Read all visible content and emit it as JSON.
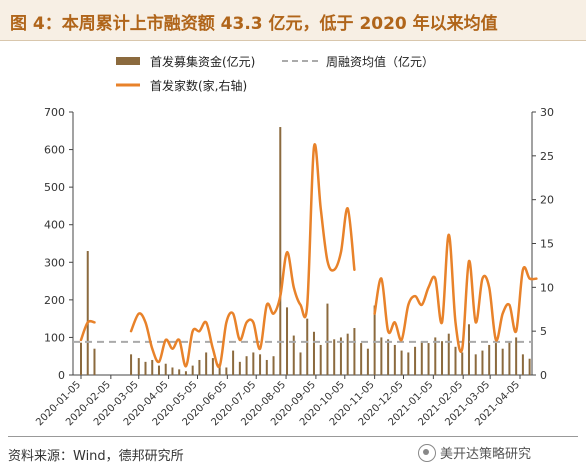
{
  "title": "图 4：本周累计上市融资额 43.3 亿元，低于 2020 年以来均值",
  "source": "资料来源：Wind，德邦研究所",
  "watermark": "美开达策略研究",
  "colors": {
    "bar": "#8b6a3e",
    "line": "#e8822a",
    "avg": "#aaaaaa",
    "title": "#b0651a"
  },
  "chart_data": {
    "type": "bar+line",
    "legend": {
      "bar": "首发募集资金(亿元)",
      "avg": "周融资均值（亿元）",
      "line": "首发家数(家,右轴)",
      "position": "top"
    },
    "x_ticks": [
      "2020-01-05",
      "2020-02-05",
      "2020-03-05",
      "2020-04-05",
      "2020-05-05",
      "2020-06-05",
      "2020-07-05",
      "2020-08-05",
      "2020-09-05",
      "2020-10-05",
      "2020-11-05",
      "2020-12-05",
      "2021-01-05",
      "2021-02-05",
      "2021-03-05",
      "2021-04-05"
    ],
    "y_left": {
      "min": 0,
      "max": 700,
      "ticks": [
        0,
        100,
        200,
        300,
        400,
        500,
        600,
        700
      ]
    },
    "y_right": {
      "min": 0,
      "max": 30,
      "ticks": [
        0,
        5,
        10,
        15,
        20,
        25,
        30
      ]
    },
    "avg_value": 88,
    "bars": [
      {
        "x": "2020-01-05",
        "value": 86
      },
      {
        "x": "2020-01-12",
        "value": 330
      },
      {
        "x": "2020-01-19",
        "value": 70
      },
      {
        "x": "2020-02-26",
        "value": 55
      },
      {
        "x": "2020-03-05",
        "value": 45
      },
      {
        "x": "2020-03-12",
        "value": 35
      },
      {
        "x": "2020-03-19",
        "value": 40
      },
      {
        "x": "2020-03-26",
        "value": 25
      },
      {
        "x": "2020-04-02",
        "value": 30
      },
      {
        "x": "2020-04-09",
        "value": 20
      },
      {
        "x": "2020-04-16",
        "value": 15
      },
      {
        "x": "2020-04-23",
        "value": 10
      },
      {
        "x": "2020-04-30",
        "value": 25
      },
      {
        "x": "2020-05-07",
        "value": 40
      },
      {
        "x": "2020-05-14",
        "value": 60
      },
      {
        "x": "2020-05-21",
        "value": 45
      },
      {
        "x": "2020-05-28",
        "value": 30
      },
      {
        "x": "2020-06-04",
        "value": 20
      },
      {
        "x": "2020-06-11",
        "value": 65
      },
      {
        "x": "2020-06-18",
        "value": 35
      },
      {
        "x": "2020-06-25",
        "value": 50
      },
      {
        "x": "2020-07-02",
        "value": 60
      },
      {
        "x": "2020-07-09",
        "value": 55
      },
      {
        "x": "2020-07-16",
        "value": 40
      },
      {
        "x": "2020-07-23",
        "value": 50
      },
      {
        "x": "2020-07-30",
        "value": 660
      },
      {
        "x": "2020-08-06",
        "value": 180
      },
      {
        "x": "2020-08-13",
        "value": 105
      },
      {
        "x": "2020-08-20",
        "value": 60
      },
      {
        "x": "2020-08-27",
        "value": 150
      },
      {
        "x": "2020-09-03",
        "value": 115
      },
      {
        "x": "2020-09-10",
        "value": 80
      },
      {
        "x": "2020-09-17",
        "value": 190
      },
      {
        "x": "2020-09-24",
        "value": 95
      },
      {
        "x": "2020-10-01",
        "value": 100
      },
      {
        "x": "2020-10-08",
        "value": 110
      },
      {
        "x": "2020-10-15",
        "value": 125
      },
      {
        "x": "2020-10-22",
        "value": 85
      },
      {
        "x": "2020-10-29",
        "value": 70
      },
      {
        "x": "2020-11-05",
        "value": 185
      },
      {
        "x": "2020-11-12",
        "value": 100
      },
      {
        "x": "2020-11-19",
        "value": 95
      },
      {
        "x": "2020-11-26",
        "value": 80
      },
      {
        "x": "2020-12-03",
        "value": 65
      },
      {
        "x": "2020-12-10",
        "value": 60
      },
      {
        "x": "2020-12-17",
        "value": 75
      },
      {
        "x": "2020-12-24",
        "value": 90
      },
      {
        "x": "2020-12-31",
        "value": 85
      },
      {
        "x": "2021-01-07",
        "value": 100
      },
      {
        "x": "2021-01-14",
        "value": 90
      },
      {
        "x": "2021-01-21",
        "value": 110
      },
      {
        "x": "2021-01-28",
        "value": 75
      },
      {
        "x": "2021-02-04",
        "value": 60
      },
      {
        "x": "2021-02-11",
        "value": 135
      },
      {
        "x": "2021-02-18",
        "value": 55
      },
      {
        "x": "2021-02-25",
        "value": 65
      },
      {
        "x": "2021-03-04",
        "value": 80
      },
      {
        "x": "2021-03-11",
        "value": 85
      },
      {
        "x": "2021-03-18",
        "value": 70
      },
      {
        "x": "2021-03-25",
        "value": 90
      },
      {
        "x": "2021-04-01",
        "value": 100
      },
      {
        "x": "2021-04-08",
        "value": 55
      },
      {
        "x": "2021-04-15",
        "value": 43.3
      }
    ],
    "line_segments": [
      [
        {
          "x": "2020-01-05",
          "value": 4
        },
        {
          "x": "2020-01-12",
          "value": 6
        },
        {
          "x": "2020-01-19",
          "value": 6
        }
      ],
      [
        {
          "x": "2020-02-26",
          "value": 5
        },
        {
          "x": "2020-03-05",
          "value": 7
        },
        {
          "x": "2020-03-12",
          "value": 6
        },
        {
          "x": "2020-03-19",
          "value": 3
        },
        {
          "x": "2020-03-26",
          "value": 1.5
        },
        {
          "x": "2020-04-02",
          "value": 4
        },
        {
          "x": "2020-04-09",
          "value": 3
        },
        {
          "x": "2020-04-16",
          "value": 4
        },
        {
          "x": "2020-04-23",
          "value": 1
        },
        {
          "x": "2020-04-30",
          "value": 5
        },
        {
          "x": "2020-05-07",
          "value": 5
        },
        {
          "x": "2020-05-14",
          "value": 6
        },
        {
          "x": "2020-05-21",
          "value": 3
        },
        {
          "x": "2020-05-28",
          "value": 1
        },
        {
          "x": "2020-06-04",
          "value": 6
        },
        {
          "x": "2020-06-11",
          "value": 7
        },
        {
          "x": "2020-06-18",
          "value": 4
        },
        {
          "x": "2020-06-25",
          "value": 6
        },
        {
          "x": "2020-07-02",
          "value": 6
        },
        {
          "x": "2020-07-09",
          "value": 3
        },
        {
          "x": "2020-07-16",
          "value": 8
        },
        {
          "x": "2020-07-23",
          "value": 7
        },
        {
          "x": "2020-07-30",
          "value": 9
        },
        {
          "x": "2020-08-06",
          "value": 14
        },
        {
          "x": "2020-08-13",
          "value": 10
        },
        {
          "x": "2020-08-20",
          "value": 8
        },
        {
          "x": "2020-08-27",
          "value": 8
        },
        {
          "x": "2020-09-03",
          "value": 26
        },
        {
          "x": "2020-09-10",
          "value": 19
        },
        {
          "x": "2020-09-17",
          "value": 13
        },
        {
          "x": "2020-09-24",
          "value": 12
        },
        {
          "x": "2020-10-01",
          "value": 14
        },
        {
          "x": "2020-10-08",
          "value": 19
        },
        {
          "x": "2020-10-15",
          "value": 12
        }
      ],
      [
        {
          "x": "2020-11-05",
          "value": 7
        },
        {
          "x": "2020-11-12",
          "value": 11
        },
        {
          "x": "2020-11-19",
          "value": 5
        },
        {
          "x": "2020-11-26",
          "value": 6
        },
        {
          "x": "2020-12-03",
          "value": 4
        },
        {
          "x": "2020-12-10",
          "value": 8
        },
        {
          "x": "2020-12-17",
          "value": 9
        },
        {
          "x": "2020-12-24",
          "value": 8
        },
        {
          "x": "2020-12-31",
          "value": 10
        },
        {
          "x": "2021-01-07",
          "value": 11
        },
        {
          "x": "2021-01-14",
          "value": 6
        },
        {
          "x": "2021-01-21",
          "value": 16
        },
        {
          "x": "2021-01-28",
          "value": 6
        },
        {
          "x": "2021-02-04",
          "value": 3
        },
        {
          "x": "2021-02-11",
          "value": 13
        },
        {
          "x": "2021-02-18",
          "value": 6
        },
        {
          "x": "2021-02-25",
          "value": 11
        },
        {
          "x": "2021-03-04",
          "value": 10
        },
        {
          "x": "2021-03-11",
          "value": 4
        },
        {
          "x": "2021-03-18",
          "value": 7
        },
        {
          "x": "2021-03-25",
          "value": 8
        },
        {
          "x": "2021-04-01",
          "value": 5
        },
        {
          "x": "2021-04-08",
          "value": 12
        },
        {
          "x": "2021-04-15",
          "value": 11
        },
        {
          "x": "2021-04-22",
          "value": 11
        }
      ]
    ]
  }
}
